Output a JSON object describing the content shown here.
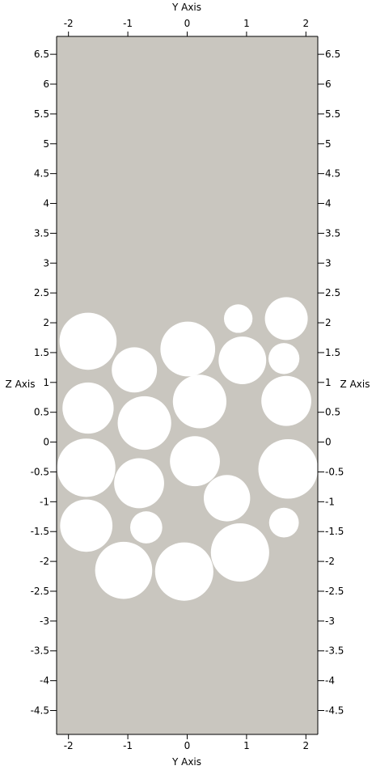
{
  "chart_data": {
    "type": "scatter",
    "title": "",
    "xlabel_top": "Y Axis",
    "xlabel_bottom": "Y Axis",
    "ylabel_left": "Z Axis",
    "ylabel_right": "Z Axis",
    "xlim": [
      -2.2,
      2.2
    ],
    "ylim": [
      -4.9,
      6.8
    ],
    "x_ticks": [
      -2,
      -1,
      0,
      1,
      2
    ],
    "x_tick_labels": [
      "-2",
      "-1",
      "0",
      "1",
      "2"
    ],
    "y_ticks": [
      6.5,
      6,
      5.5,
      5,
      4.5,
      4,
      3.5,
      3,
      2.5,
      2,
      1.5,
      1,
      0.5,
      0,
      -0.5,
      -1,
      -1.5,
      -2,
      -2.5,
      -3,
      -3.5,
      -4,
      -4.5
    ],
    "y_tick_labels": [
      "6.5",
      "6",
      "5.5",
      "5",
      "4.5",
      "4",
      "3.5",
      "3",
      "2.5",
      "2",
      "1.5",
      "1",
      "0.5",
      "0",
      "-0.5",
      "-1",
      "-1.5",
      "-2",
      "-2.5",
      "-3",
      "-3.5",
      "-4",
      "-4.5"
    ],
    "grid": false,
    "colors": {
      "background": "#c9c6bf",
      "particle": "#ffffff",
      "axis": "#000000"
    },
    "circles": [
      {
        "y": -1.67,
        "z": 1.69,
        "r": 0.48
      },
      {
        "y": -0.89,
        "z": 1.21,
        "r": 0.38
      },
      {
        "y": 0.01,
        "z": 1.56,
        "r": 0.46
      },
      {
        "y": 0.86,
        "z": 2.07,
        "r": 0.24
      },
      {
        "y": 1.67,
        "z": 2.07,
        "r": 0.36
      },
      {
        "y": 0.93,
        "z": 1.37,
        "r": 0.4
      },
      {
        "y": 1.63,
        "z": 1.4,
        "r": 0.26
      },
      {
        "y": -1.67,
        "z": 0.57,
        "r": 0.43
      },
      {
        "y": -0.72,
        "z": 0.32,
        "r": 0.45
      },
      {
        "y": 0.21,
        "z": 0.68,
        "r": 0.45
      },
      {
        "y": 1.67,
        "z": 0.69,
        "r": 0.42
      },
      {
        "y": -1.7,
        "z": -0.43,
        "r": 0.49
      },
      {
        "y": -0.81,
        "z": -0.69,
        "r": 0.42
      },
      {
        "y": 0.13,
        "z": -0.32,
        "r": 0.42
      },
      {
        "y": 0.67,
        "z": -0.94,
        "r": 0.39
      },
      {
        "y": 1.7,
        "z": -0.45,
        "r": 0.5
      },
      {
        "y": -1.7,
        "z": -1.4,
        "r": 0.44
      },
      {
        "y": -0.69,
        "z": -1.43,
        "r": 0.27
      },
      {
        "y": 1.63,
        "z": -1.35,
        "r": 0.25
      },
      {
        "y": -1.07,
        "z": -2.15,
        "r": 0.48
      },
      {
        "y": -0.05,
        "z": -2.17,
        "r": 0.49
      },
      {
        "y": 0.89,
        "z": -1.85,
        "r": 0.49
      }
    ]
  }
}
